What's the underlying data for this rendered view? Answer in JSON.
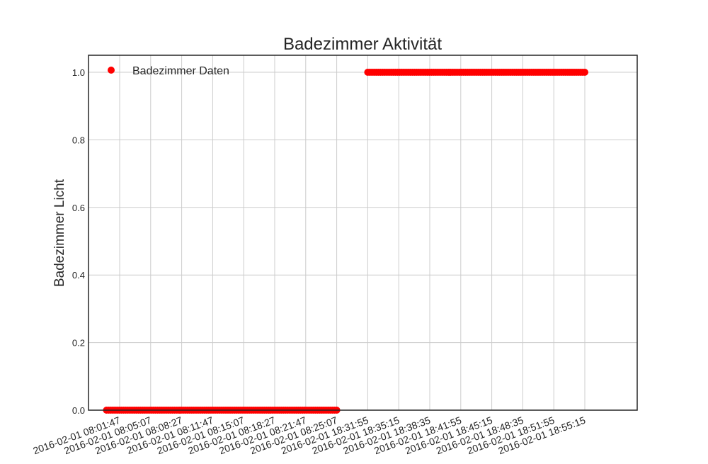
{
  "chart_data": {
    "type": "scatter",
    "title": "Badezimmer Aktivität",
    "xlabel": "",
    "ylabel": "Badezimmer Licht",
    "legend_position": "top-left",
    "grid": true,
    "ylim": [
      0.0,
      1.0
    ],
    "y_ticks": [
      "0.0",
      "0.2",
      "0.4",
      "0.6",
      "0.8",
      "1.0"
    ],
    "x_tick_labels": [
      "2016-02-01 08:01:47",
      "2016-02-01 08:05:07",
      "2016-02-01 08:08:27",
      "2016-02-01 08:11:47",
      "2016-02-01 08:15:07",
      "2016-02-01 08:18:27",
      "2016-02-01 08:21:47",
      "2016-02-01 08:25:07",
      "2016-02-01 18:31:55",
      "2016-02-01 18:35:15",
      "2016-02-01 18:38:35",
      "2016-02-01 18:41:55",
      "2016-02-01 18:45:15",
      "2016-02-01 18:48:35",
      "2016-02-01 18:51:55",
      "2016-02-01 18:55:15"
    ],
    "series": [
      {
        "name": "Badezimmer Daten",
        "color": "#ff0000",
        "marker": "circle",
        "segments": [
          {
            "x_start": "2016-02-01 08:00:22",
            "x_end": "2016-02-01 08:25:07",
            "y": 0.0
          },
          {
            "x_start": "2016-02-01 18:31:55",
            "x_end": "2016-02-01 18:55:15",
            "y": 1.0
          }
        ]
      }
    ]
  }
}
